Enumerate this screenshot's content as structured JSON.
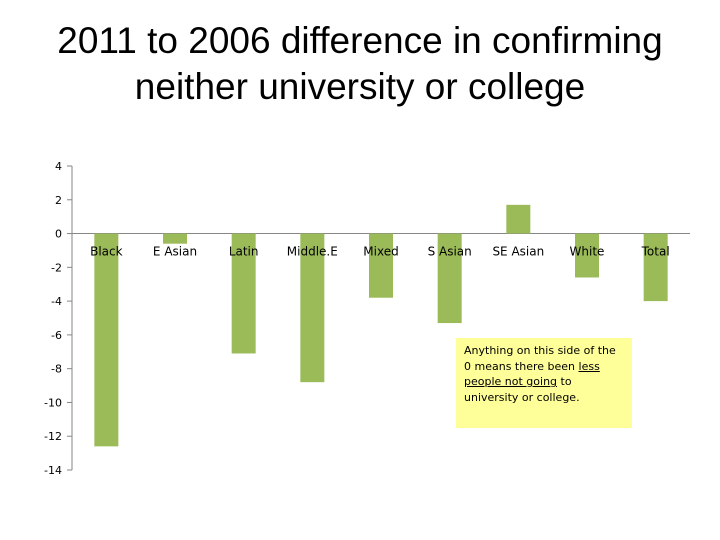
{
  "title": "2011 to 2006 difference in confirming neither university or college",
  "chart_data": {
    "type": "bar",
    "categories": [
      "Black",
      "E Asian",
      "Latin",
      "Middle.E",
      "Mixed",
      "S Asian",
      "SE Asian",
      "White",
      "Total"
    ],
    "values": [
      -12.6,
      -0.6,
      -7.1,
      -8.8,
      -3.8,
      -5.3,
      1.7,
      -2.6,
      -4.0
    ],
    "ylim": [
      -14,
      4
    ],
    "yticks": [
      4,
      2,
      0,
      -2,
      -4,
      -6,
      -8,
      -10,
      -12,
      -14
    ],
    "bar_color": "#9bbb59",
    "grid": false
  },
  "annotation": {
    "part1": "Anything on this side of the 0 means there been ",
    "underlined": "less people not going",
    "part2": " to university or college.",
    "background": "#ffff99"
  }
}
